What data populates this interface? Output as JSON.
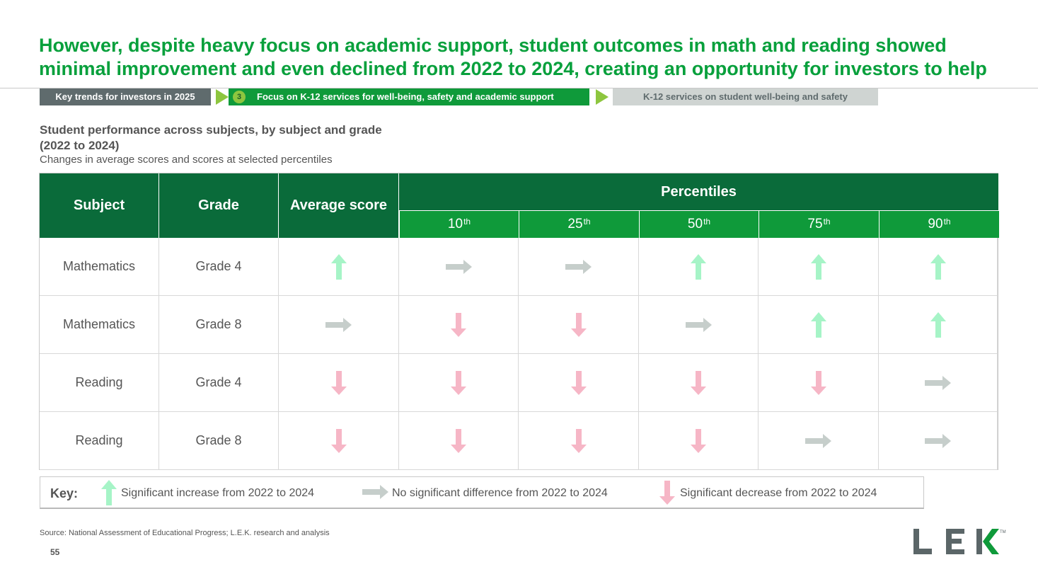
{
  "title": "However, despite heavy focus on academic support, student outcomes in math and reading showed minimal improvement and even declined from 2022 to 2024, creating an opportunity for investors to help",
  "breadcrumb": {
    "step1": "Key trends for investors in 2025",
    "step_number": "3",
    "step2": "Focus on K-12 services for well-being, safety and academic support",
    "step3": "K-12 services on student well-being and safety"
  },
  "chart_title": "Student performance across subjects, by subject and grade (2022 to 2024)",
  "chart_title_line1": "Student performance across subjects, by subject and grade",
  "chart_title_line2": "(2022 to 2024)",
  "chart_subtitle": "Changes in average scores and scores at selected percentiles",
  "table": {
    "headers": {
      "subject": "Subject",
      "grade": "Grade",
      "average": "Average score",
      "percentiles": "Percentiles"
    },
    "percentile_cols": [
      {
        "num": "10",
        "suffix": "th"
      },
      {
        "num": "25",
        "suffix": "th"
      },
      {
        "num": "50",
        "suffix": "th"
      },
      {
        "num": "75",
        "suffix": "th"
      },
      {
        "num": "90",
        "suffix": "th"
      }
    ],
    "rows": [
      {
        "subject": "Mathematics",
        "grade": "Grade 4",
        "values": [
          "up",
          "flat",
          "flat",
          "up",
          "up",
          "up"
        ]
      },
      {
        "subject": "Mathematics",
        "grade": "Grade 8",
        "values": [
          "flat",
          "down",
          "down",
          "flat",
          "up",
          "up"
        ]
      },
      {
        "subject": "Reading",
        "grade": "Grade 4",
        "values": [
          "down",
          "down",
          "down",
          "down",
          "down",
          "flat"
        ]
      },
      {
        "subject": "Reading",
        "grade": "Grade 8",
        "values": [
          "down",
          "down",
          "down",
          "down",
          "flat",
          "flat"
        ]
      }
    ]
  },
  "key": {
    "label": "Key:",
    "up": "Significant increase from 2022 to 2024",
    "flat": "No significant difference from 2022 to 2024",
    "down": "Significant decrease from 2022 to 2024"
  },
  "colors": {
    "up": "#a6f4c7",
    "flat": "#c6cecb",
    "down": "#f6b6c6",
    "brand_green": "#0f9a3a",
    "dark_green": "#0a6b3a"
  },
  "icons": {
    "up": "arrow-up-icon",
    "flat": "arrow-right-icon",
    "down": "arrow-down-icon"
  },
  "source": "Source: National Assessment of Educational Progress; L.E.K. research and analysis",
  "page_number": "55",
  "logo": {
    "text": "LEK",
    "tm": "TM"
  }
}
